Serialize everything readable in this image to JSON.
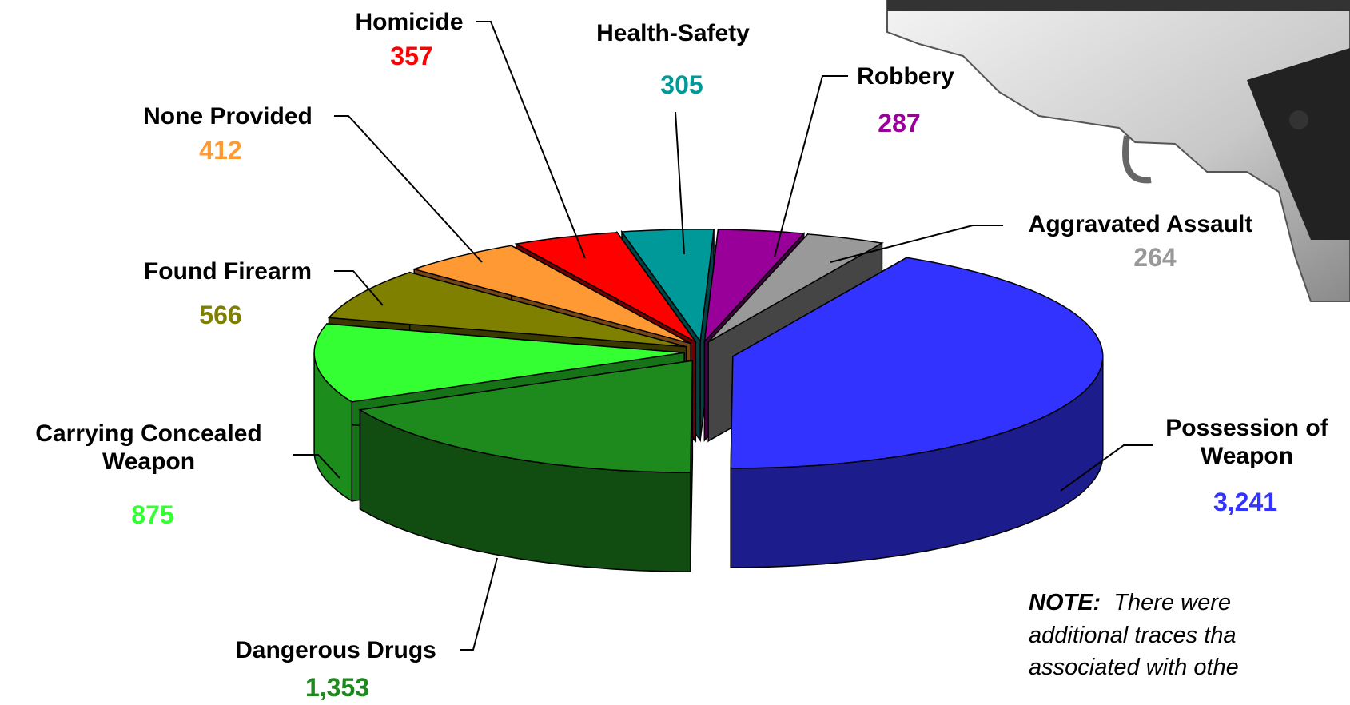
{
  "chart_data": {
    "type": "pie",
    "categories": [
      "Possession of Weapon",
      "Dangerous Drugs",
      "Carrying Concealed Weapon",
      "Found Firearm",
      "None Provided",
      "Homicide",
      "Health-Safety",
      "Robbery",
      "Aggravated Assault"
    ],
    "values": [
      3241,
      1353,
      875,
      566,
      412,
      357,
      305,
      287,
      264
    ],
    "value_labels": [
      "3,241",
      "1,353",
      "875",
      "566",
      "412",
      "357",
      "305",
      "287",
      "264"
    ],
    "colors": [
      "#3333ff",
      "#1e8a1e",
      "#33ff33",
      "#808000",
      "#ff9933",
      "#ff0000",
      "#009999",
      "#990099",
      "#999999"
    ],
    "note": {
      "lead": "NOTE:",
      "lines": [
        "There were",
        "additional traces tha",
        "associated with othe"
      ]
    }
  }
}
